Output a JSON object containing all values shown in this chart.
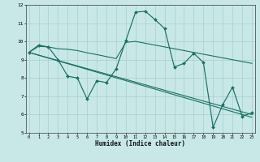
{
  "xlabel": "Humidex (Indice chaleur)",
  "background_color": "#c8e8e8",
  "grid_color": "#a8cece",
  "line_color": "#1a7060",
  "x_values": [
    0,
    1,
    2,
    3,
    4,
    5,
    6,
    7,
    8,
    9,
    10,
    11,
    12,
    13,
    14,
    15,
    16,
    17,
    18,
    19,
    20,
    21,
    22,
    23
  ],
  "line1": [
    9.4,
    9.8,
    9.7,
    9.0,
    8.1,
    8.0,
    6.85,
    7.85,
    7.75,
    8.5,
    10.05,
    11.6,
    11.65,
    11.2,
    10.7,
    8.6,
    8.8,
    9.35,
    8.85,
    5.3,
    6.55,
    7.5,
    5.9,
    6.1
  ],
  "line2": [
    9.4,
    9.73,
    9.7,
    9.6,
    9.57,
    9.5,
    9.38,
    9.28,
    9.17,
    9.06,
    9.95,
    10.0,
    9.9,
    9.8,
    9.7,
    9.6,
    9.5,
    9.4,
    9.3,
    9.2,
    9.1,
    9.0,
    8.9,
    8.8
  ],
  "line3_x": [
    0,
    23
  ],
  "line3_y": [
    9.4,
    6.0
  ],
  "line4_x": [
    0,
    23
  ],
  "line4_y": [
    9.4,
    5.85
  ],
  "ylim": [
    5,
    12
  ],
  "xlim": [
    -0.3,
    23.3
  ],
  "yticks": [
    5,
    6,
    7,
    8,
    9,
    10,
    11,
    12
  ],
  "xticks": [
    0,
    1,
    2,
    3,
    4,
    5,
    6,
    7,
    8,
    9,
    10,
    11,
    12,
    13,
    14,
    15,
    16,
    17,
    18,
    19,
    20,
    21,
    22,
    23
  ]
}
